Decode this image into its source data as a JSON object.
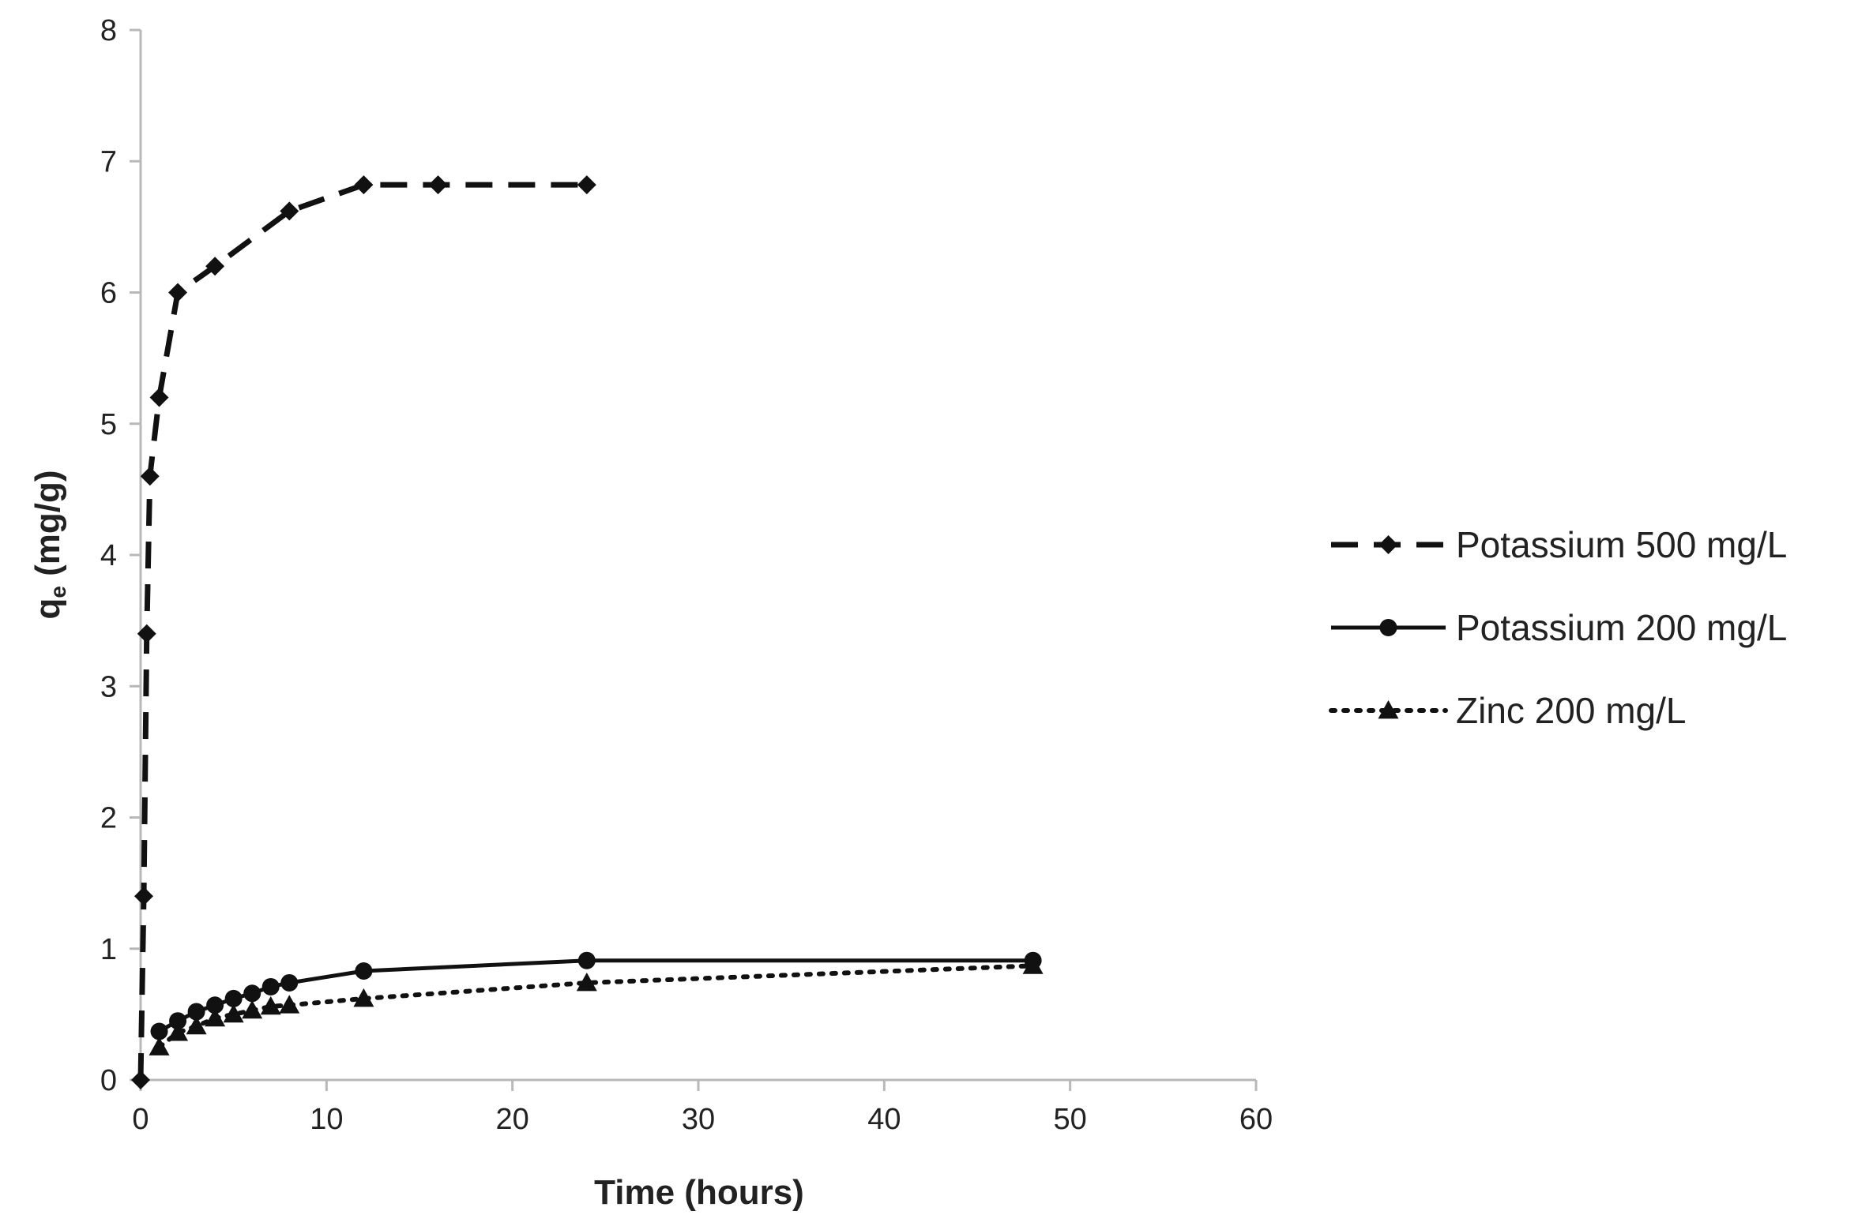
{
  "chart_data": {
    "type": "line",
    "title": "",
    "xlabel": "Time (hours)",
    "ylabel_main": "q",
    "ylabel_sub": "e",
    "ylabel_unit": " (mg/g)",
    "xlim": [
      0,
      60
    ],
    "ylim": [
      0,
      8
    ],
    "xticks": [
      0,
      10,
      20,
      30,
      40,
      50,
      60
    ],
    "yticks": [
      0,
      1,
      2,
      3,
      4,
      5,
      6,
      7,
      8
    ],
    "grid": false,
    "legend_position": "right",
    "series": [
      {
        "name": "Potassium 500 mg/L",
        "line_style": "dashed",
        "marker": "diamond",
        "color": "#111111",
        "x": [
          0,
          0.17,
          0.33,
          0.5,
          1,
          2,
          4,
          8,
          12,
          16,
          24
        ],
        "y": [
          0,
          1.4,
          3.4,
          4.6,
          5.2,
          6.0,
          6.2,
          6.62,
          6.82,
          6.82,
          6.82
        ]
      },
      {
        "name": "Potassium 200 mg/L",
        "line_style": "solid",
        "marker": "circle",
        "color": "#111111",
        "x": [
          1,
          2,
          3,
          4,
          5,
          6,
          7,
          8,
          12,
          24,
          48
        ],
        "y": [
          0.37,
          0.45,
          0.52,
          0.57,
          0.62,
          0.66,
          0.71,
          0.74,
          0.83,
          0.91,
          0.91
        ]
      },
      {
        "name": "Zinc 200 mg/L",
        "line_style": "dotted",
        "marker": "triangle",
        "color": "#111111",
        "x": [
          1,
          2,
          3,
          4,
          5,
          6,
          7,
          8,
          12,
          24,
          48
        ],
        "y": [
          0.25,
          0.36,
          0.41,
          0.47,
          0.5,
          0.53,
          0.56,
          0.57,
          0.62,
          0.74,
          0.87
        ]
      }
    ]
  }
}
